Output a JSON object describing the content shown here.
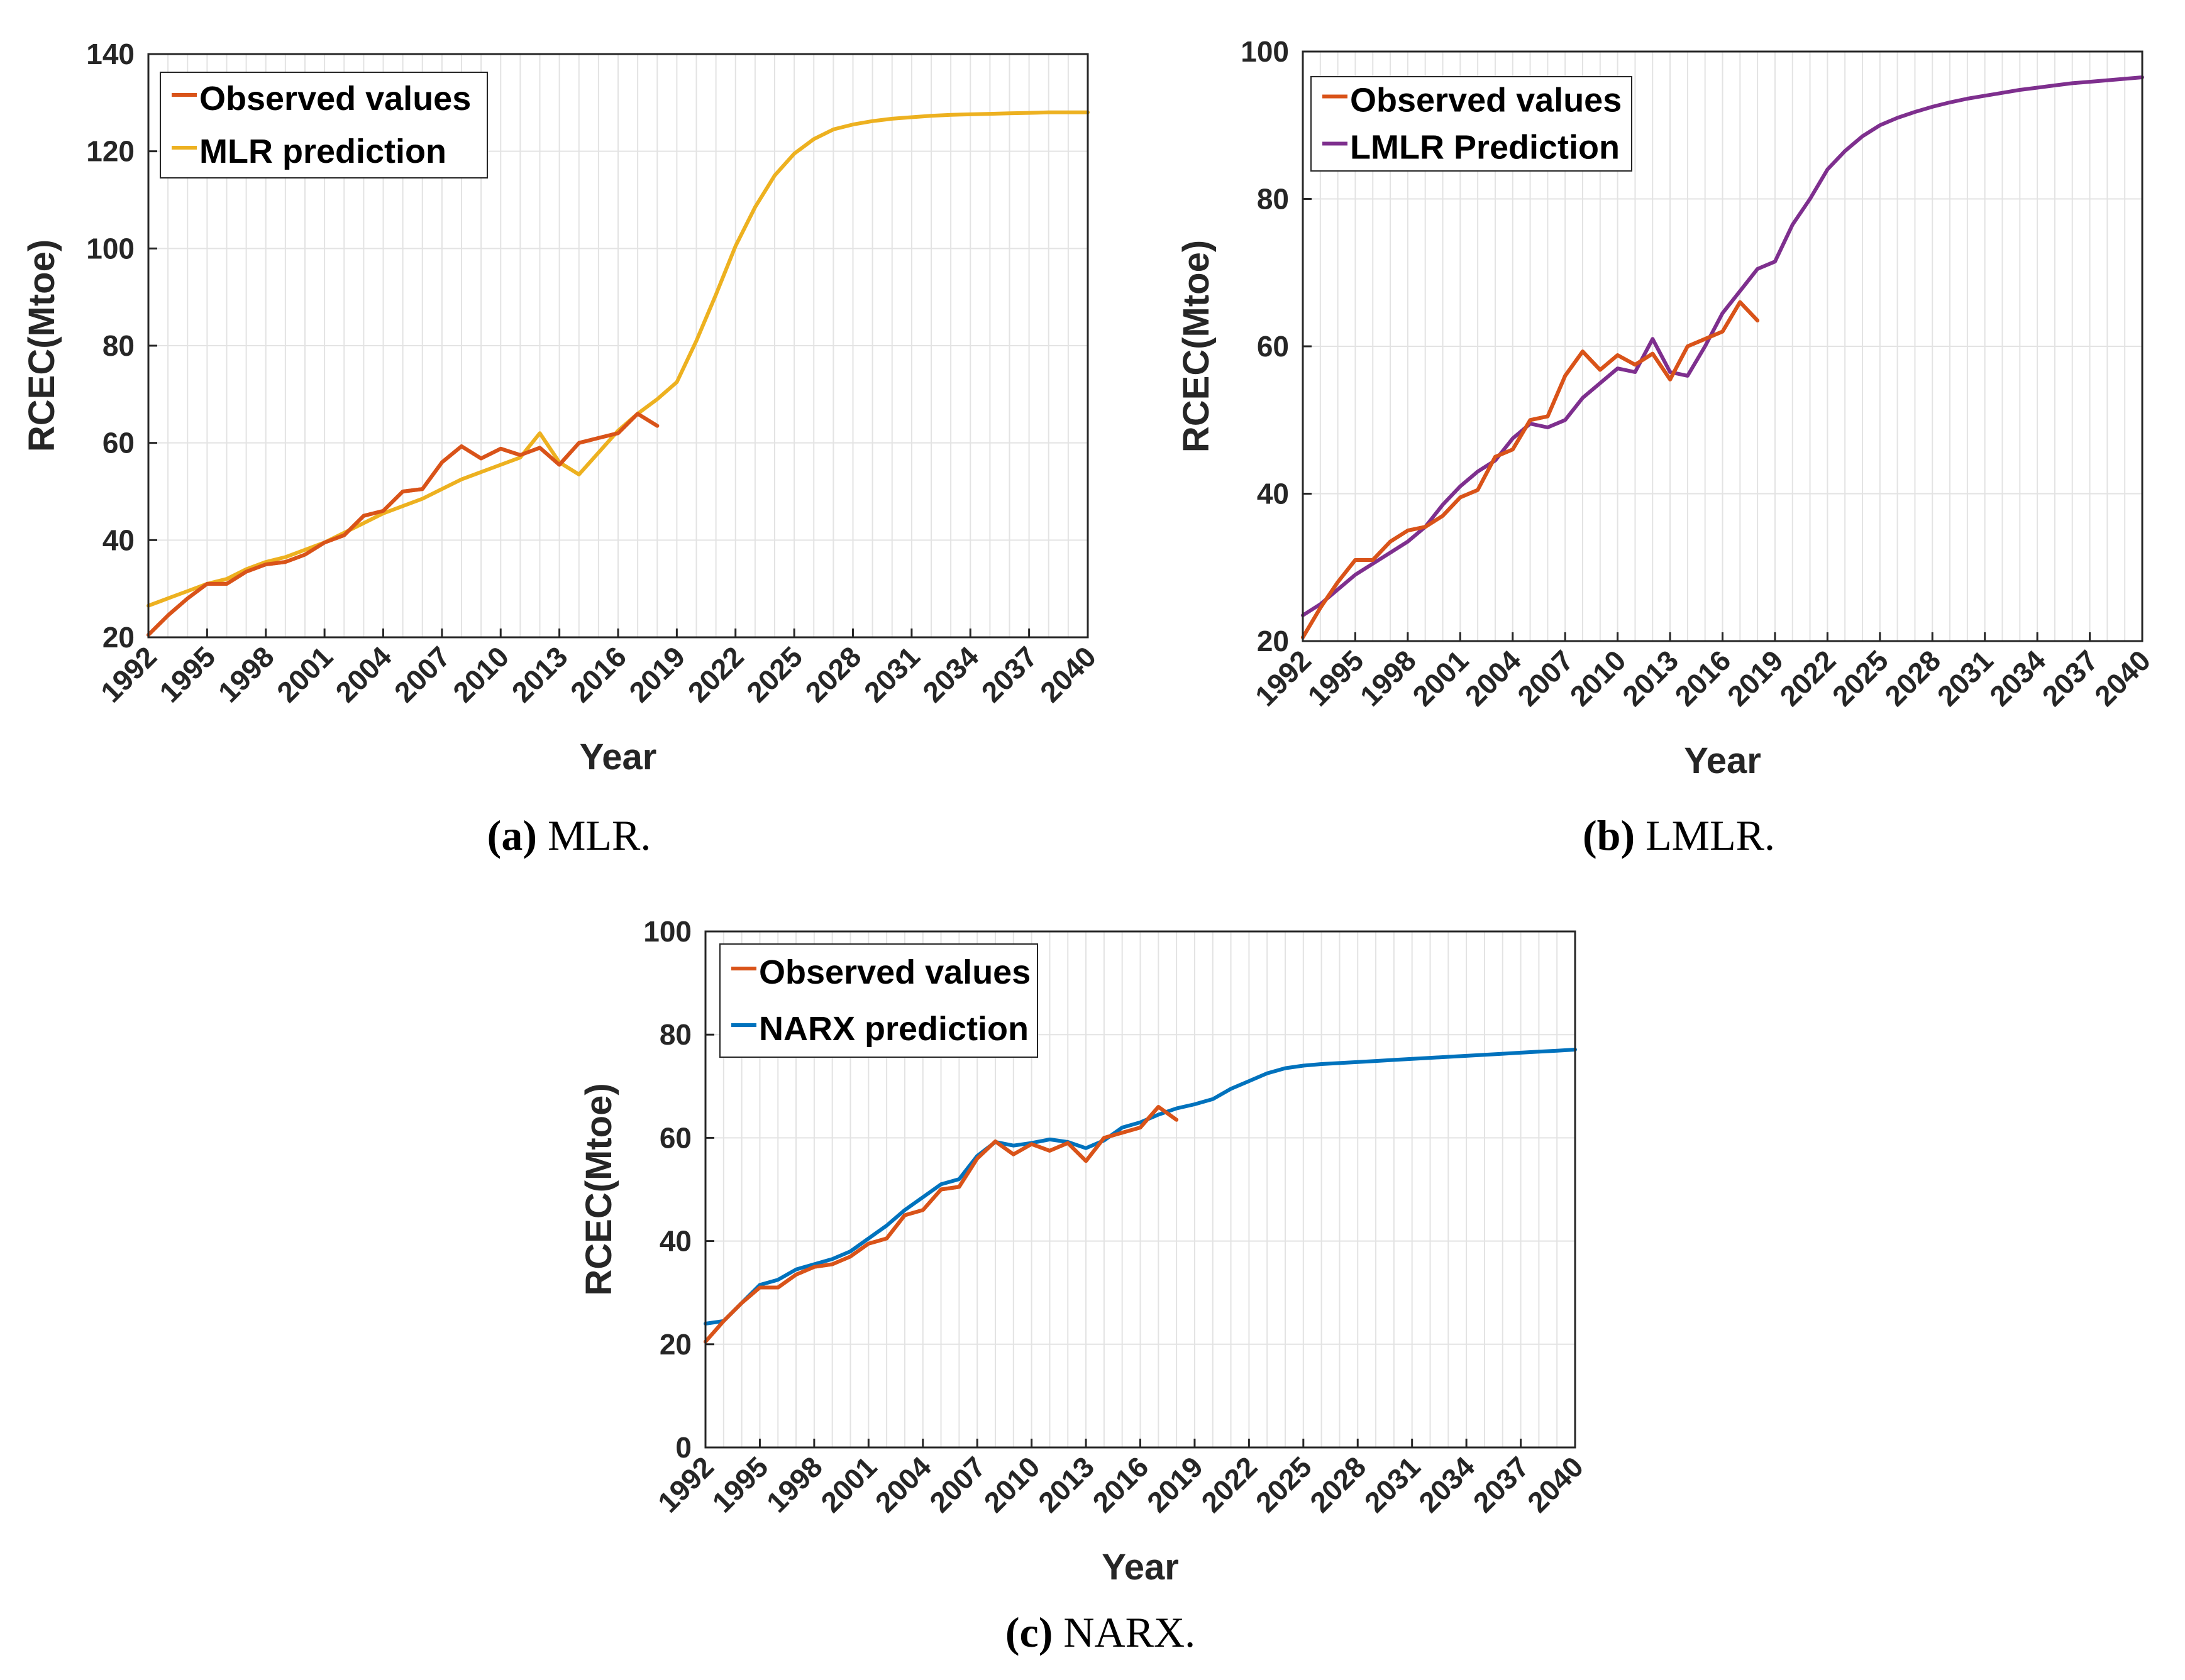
{
  "chart_data": [
    {
      "type": "line",
      "caption_letter": "(a)",
      "caption_text": " MLR.",
      "xlabel": "Year",
      "ylabel": "RCEC(Mtoe)",
      "xlim": [
        1992,
        2040
      ],
      "ylim": [
        20,
        140
      ],
      "xticks": [
        1992,
        1995,
        1998,
        2001,
        2004,
        2007,
        2010,
        2013,
        2016,
        2019,
        2022,
        2025,
        2028,
        2031,
        2034,
        2037,
        2040
      ],
      "yticks": [
        20,
        40,
        60,
        80,
        100,
        120,
        140
      ],
      "legend_position": "top-left",
      "grid": true,
      "series": [
        {
          "name": "Observed values",
          "color": "#D95319",
          "x": [
            1992,
            1993,
            1994,
            1995,
            1996,
            1997,
            1998,
            1999,
            2000,
            2001,
            2002,
            2003,
            2004,
            2005,
            2006,
            2007,
            2008,
            2009,
            2010,
            2011,
            2012,
            2013,
            2014,
            2015,
            2016,
            2017,
            2018
          ],
          "y": [
            20.5,
            24.5,
            28,
            31,
            31,
            33.5,
            35,
            35.5,
            37,
            39.5,
            41,
            45,
            46,
            50,
            50.5,
            56,
            59.3,
            56.8,
            58.8,
            57.5,
            59,
            55.5,
            60,
            61,
            62,
            66,
            63.5
          ]
        },
        {
          "name": "MLR prediction",
          "color": "#EDB120",
          "x": [
            1992,
            1993,
            1994,
            1995,
            1996,
            1997,
            1998,
            1999,
            2000,
            2001,
            2002,
            2003,
            2004,
            2005,
            2006,
            2007,
            2008,
            2009,
            2010,
            2011,
            2012,
            2013,
            2014,
            2015,
            2016,
            2017,
            2018,
            2019,
            2020,
            2021,
            2022,
            2023,
            2024,
            2025,
            2026,
            2027,
            2028,
            2029,
            2030,
            2031,
            2032,
            2033,
            2034,
            2035,
            2036,
            2037,
            2038,
            2039,
            2040
          ],
          "y": [
            26.5,
            28,
            29.5,
            31,
            32,
            34,
            35.5,
            36.5,
            38,
            39.5,
            41.5,
            43.5,
            45.5,
            47,
            48.5,
            50.5,
            52.5,
            54,
            55.5,
            57,
            62,
            56,
            53.5,
            58,
            62.5,
            66,
            69,
            72.5,
            81,
            90.5,
            100.5,
            108.5,
            115,
            119.5,
            122.5,
            124.5,
            125.5,
            126.2,
            126.7,
            127,
            127.3,
            127.5,
            127.6,
            127.7,
            127.8,
            127.9,
            128,
            128,
            128
          ]
        }
      ]
    },
    {
      "type": "line",
      "caption_letter": "(b)",
      "caption_text": " LMLR.",
      "xlabel": "Year",
      "ylabel": "RCEC(Mtoe)",
      "xlim": [
        1992,
        2040
      ],
      "ylim": [
        20,
        100
      ],
      "xticks": [
        1992,
        1995,
        1998,
        2001,
        2004,
        2007,
        2010,
        2013,
        2016,
        2019,
        2022,
        2025,
        2028,
        2031,
        2034,
        2037,
        2040
      ],
      "yticks": [
        20,
        40,
        60,
        80,
        100
      ],
      "legend_position": "top-left",
      "grid": true,
      "series": [
        {
          "name": "Observed values",
          "color": "#D95319",
          "x": [
            1992,
            1993,
            1994,
            1995,
            1996,
            1997,
            1998,
            1999,
            2000,
            2001,
            2002,
            2003,
            2004,
            2005,
            2006,
            2007,
            2008,
            2009,
            2010,
            2011,
            2012,
            2013,
            2014,
            2015,
            2016,
            2017,
            2018
          ],
          "y": [
            20.5,
            24.5,
            28,
            31,
            31,
            33.5,
            35,
            35.5,
            37,
            39.5,
            40.5,
            45,
            46,
            50,
            50.5,
            56,
            59.3,
            56.8,
            58.8,
            57.5,
            59,
            55.5,
            60,
            61,
            62,
            66,
            63.5
          ]
        },
        {
          "name": "LMLR Prediction",
          "color": "#7E2F8E",
          "x": [
            1992,
            1993,
            1994,
            1995,
            1996,
            1997,
            1998,
            1999,
            2000,
            2001,
            2002,
            2003,
            2004,
            2005,
            2006,
            2007,
            2008,
            2009,
            2010,
            2011,
            2012,
            2013,
            2014,
            2015,
            2016,
            2017,
            2018,
            2019,
            2020,
            2021,
            2022,
            2023,
            2024,
            2025,
            2026,
            2027,
            2028,
            2029,
            2030,
            2031,
            2032,
            2033,
            2034,
            2035,
            2036,
            2037,
            2038,
            2039,
            2040
          ],
          "y": [
            23.5,
            25,
            27,
            29,
            30.5,
            32,
            33.5,
            35.5,
            38.5,
            41,
            43,
            44.5,
            47.5,
            49.5,
            49,
            50,
            53,
            55,
            57,
            56.5,
            61,
            56.5,
            56,
            60,
            64.5,
            67.5,
            70.5,
            71.5,
            76.5,
            80,
            84,
            86.5,
            88.5,
            90,
            91,
            91.8,
            92.5,
            93.1,
            93.6,
            94,
            94.4,
            94.8,
            95.1,
            95.4,
            95.7,
            95.9,
            96.1,
            96.3,
            96.5
          ]
        }
      ]
    },
    {
      "type": "line",
      "caption_letter": "(c)",
      "caption_text": " NARX.",
      "xlabel": "Year",
      "ylabel": "RCEC(Mtoe)",
      "xlim": [
        1992,
        2040
      ],
      "ylim": [
        0,
        100
      ],
      "xticks": [
        1992,
        1995,
        1998,
        2001,
        2004,
        2007,
        2010,
        2013,
        2016,
        2019,
        2022,
        2025,
        2028,
        2031,
        2034,
        2037,
        2040
      ],
      "yticks": [
        0,
        20,
        40,
        60,
        80,
        100
      ],
      "legend_position": "top-left",
      "grid": true,
      "series": [
        {
          "name": "Observed values",
          "color": "#D95319",
          "x": [
            1992,
            1993,
            1994,
            1995,
            1996,
            1997,
            1998,
            1999,
            2000,
            2001,
            2002,
            2003,
            2004,
            2005,
            2006,
            2007,
            2008,
            2009,
            2010,
            2011,
            2012,
            2013,
            2014,
            2015,
            2016,
            2017,
            2018
          ],
          "y": [
            20.5,
            24.5,
            28,
            31,
            31,
            33.5,
            35,
            35.5,
            37,
            39.5,
            40.5,
            45,
            46,
            50,
            50.5,
            56,
            59.3,
            56.8,
            58.8,
            57.5,
            59,
            55.5,
            60,
            61,
            62,
            66,
            63.5
          ]
        },
        {
          "name": "NARX prediction",
          "color": "#0072BD",
          "x": [
            1992,
            1993,
            1994,
            1995,
            1996,
            1997,
            1998,
            1999,
            2000,
            2001,
            2002,
            2003,
            2004,
            2005,
            2006,
            2007,
            2008,
            2009,
            2010,
            2011,
            2012,
            2013,
            2014,
            2015,
            2016,
            2017,
            2018,
            2019,
            2020,
            2021,
            2022,
            2023,
            2024,
            2025,
            2026,
            2027,
            2028,
            2029,
            2030,
            2031,
            2032,
            2033,
            2034,
            2035,
            2036,
            2037,
            2038,
            2039,
            2040
          ],
          "y": [
            24,
            24.5,
            28,
            31.5,
            32.5,
            34.5,
            35.5,
            36.5,
            38,
            40.5,
            43,
            46,
            48.5,
            51,
            52,
            56.5,
            59.2,
            58.5,
            59,
            59.7,
            59.2,
            58,
            59.5,
            62,
            63,
            64.5,
            65.7,
            66.5,
            67.5,
            69.5,
            71,
            72.5,
            73.5,
            74,
            74.3,
            74.5,
            74.7,
            74.9,
            75.1,
            75.3,
            75.5,
            75.7,
            75.9,
            76.1,
            76.3,
            76.5,
            76.7,
            76.9,
            77.1
          ]
        }
      ]
    }
  ]
}
